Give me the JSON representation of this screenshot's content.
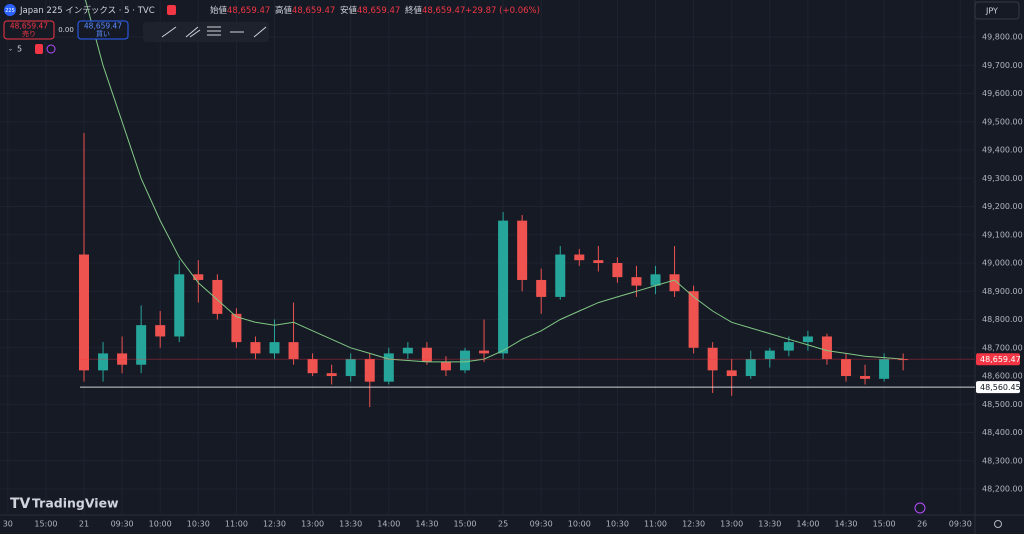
{
  "header": {
    "logo": "225",
    "symbol": "Japan 225 インデックス · 5 · TVC",
    "ohlc": [
      {
        "label": "始値",
        "value": "48,659.47"
      },
      {
        "label": "高値",
        "value": "48,659.47"
      },
      {
        "label": "安値",
        "value": "48,659.47"
      },
      {
        "label": "終値",
        "value": "48,659.47"
      }
    ],
    "change": "+29.87 (+0.06%)"
  },
  "trade": {
    "sell_price": "48,659.47",
    "sell_label": "売り",
    "spread": "0.00",
    "buy_price": "48,659.47",
    "buy_label": "買い"
  },
  "indicator_count": "5",
  "currency": "JPY",
  "brand": "TradingView",
  "chart_data": {
    "type": "candlestick",
    "up_color": "#26a69a",
    "down_color": "#ef5350",
    "categories": [
      "30",
      null,
      "15:00",
      null,
      "21",
      null,
      "09:30",
      null,
      "10:00",
      null,
      "10:30",
      null,
      "11:00",
      null,
      "12:30",
      null,
      "13:00",
      null,
      "13:30",
      null,
      "14:00",
      null,
      "14:30",
      null,
      "15:00",
      null,
      "25",
      null,
      "09:30",
      null,
      "10:00",
      null,
      "10:30",
      null,
      "11:00",
      null,
      "12:30",
      null,
      "13:00",
      null,
      "13:30",
      null,
      "14:00",
      null,
      "14:30",
      null,
      "15:00",
      null,
      "26",
      null,
      "09:30"
    ],
    "open": [
      null,
      null,
      null,
      null,
      49030,
      48620,
      48680,
      48640,
      48780,
      48740,
      48960,
      48940,
      48820,
      48720,
      48680,
      48720,
      48660,
      48610,
      48600,
      48660,
      48580,
      48680,
      48700,
      48650,
      48620,
      48690,
      48680,
      49150,
      48940,
      48880,
      49030,
      49010,
      49000,
      48950,
      48920,
      48960,
      48900,
      48700,
      48620,
      48600,
      48660,
      48690,
      48720,
      48740,
      48660,
      48600,
      48590,
      48660,
      null,
      null,
      null
    ],
    "high": [
      null,
      null,
      null,
      null,
      49460,
      48720,
      48740,
      48850,
      48830,
      49010,
      49010,
      48960,
      48840,
      48740,
      48800,
      48860,
      48680,
      48640,
      48680,
      48680,
      48700,
      48720,
      48720,
      48670,
      48700,
      48800,
      49180,
      49170,
      48980,
      49060,
      49050,
      49060,
      49020,
      48990,
      48990,
      49060,
      48920,
      48720,
      48660,
      48690,
      48700,
      48740,
      48760,
      48750,
      48680,
      48640,
      48680,
      48680,
      null,
      null,
      null
    ],
    "low": [
      null,
      null,
      null,
      null,
      48580,
      48580,
      48610,
      48610,
      48700,
      48720,
      48860,
      48800,
      48700,
      48660,
      48660,
      48640,
      48600,
      48570,
      48580,
      48490,
      48570,
      48660,
      48640,
      48600,
      48610,
      48650,
      48660,
      48900,
      48820,
      48870,
      48990,
      48970,
      48930,
      48880,
      48890,
      48880,
      48680,
      48540,
      48530,
      48590,
      48630,
      48670,
      48690,
      48640,
      48580,
      48570,
      48580,
      48620,
      null,
      null,
      null
    ],
    "close": [
      null,
      null,
      null,
      null,
      48620,
      48680,
      48640,
      48780,
      48740,
      48960,
      48940,
      48820,
      48720,
      48680,
      48720,
      48660,
      48610,
      48600,
      48660,
      48580,
      48680,
      48700,
      48650,
      48620,
      48690,
      48680,
      49150,
      48940,
      48880,
      49030,
      49010,
      49000,
      48950,
      48920,
      48960,
      48900,
      48700,
      48620,
      48600,
      48660,
      48690,
      48720,
      48740,
      48660,
      48600,
      48590,
      48660,
      48659.47,
      null,
      null,
      null
    ],
    "ma": {
      "color": "#81c784",
      "values": [
        null,
        null,
        null,
        null,
        49950,
        49700,
        49500,
        49300,
        49150,
        49020,
        48930,
        48870,
        48810,
        48790,
        48780,
        48790,
        48760,
        48730,
        48700,
        48680,
        48660,
        48655,
        48650,
        48650,
        48650,
        48660,
        48690,
        48730,
        48760,
        48800,
        48830,
        48860,
        48880,
        48900,
        48920,
        48940,
        48880,
        48830,
        48790,
        48770,
        48750,
        48730,
        48710,
        48690,
        48680,
        48670,
        48665,
        48660,
        null,
        null,
        null
      ]
    },
    "ylim": [
      48108,
      49931
    ],
    "yticks": [
      {
        "value": 48200,
        "label": "48,200.00"
      },
      {
        "value": 48300,
        "label": "48,300.00"
      },
      {
        "value": 48400,
        "label": "48,400.00"
      },
      {
        "value": 48500,
        "label": "48,500.00"
      },
      {
        "value": 48600,
        "label": "48,600.00"
      },
      {
        "value": 48700,
        "label": "48,700.00"
      },
      {
        "value": 48800,
        "label": "48,800.00"
      },
      {
        "value": 48900,
        "label": "48,900.00"
      },
      {
        "value": 49000,
        "label": "49,000.00"
      },
      {
        "value": 49100,
        "label": "49,100.00"
      },
      {
        "value": 49200,
        "label": "49,200.00"
      },
      {
        "value": 49300,
        "label": "49,300.00"
      },
      {
        "value": 49400,
        "label": "49,400.00"
      },
      {
        "value": 49500,
        "label": "49,500.00"
      },
      {
        "value": 49600,
        "label": "49,600.00"
      },
      {
        "value": 49700,
        "label": "49,700.00"
      },
      {
        "value": 49800,
        "label": "49,800.00"
      }
    ],
    "price_lines": [
      {
        "value": 48659.47,
        "label": "48,659.47",
        "color": "#f23645",
        "text_color": "#ffffff"
      },
      {
        "value": 48560.45,
        "label": "48,560.45",
        "color": "#ffffff",
        "text_color": "#131722"
      }
    ]
  }
}
